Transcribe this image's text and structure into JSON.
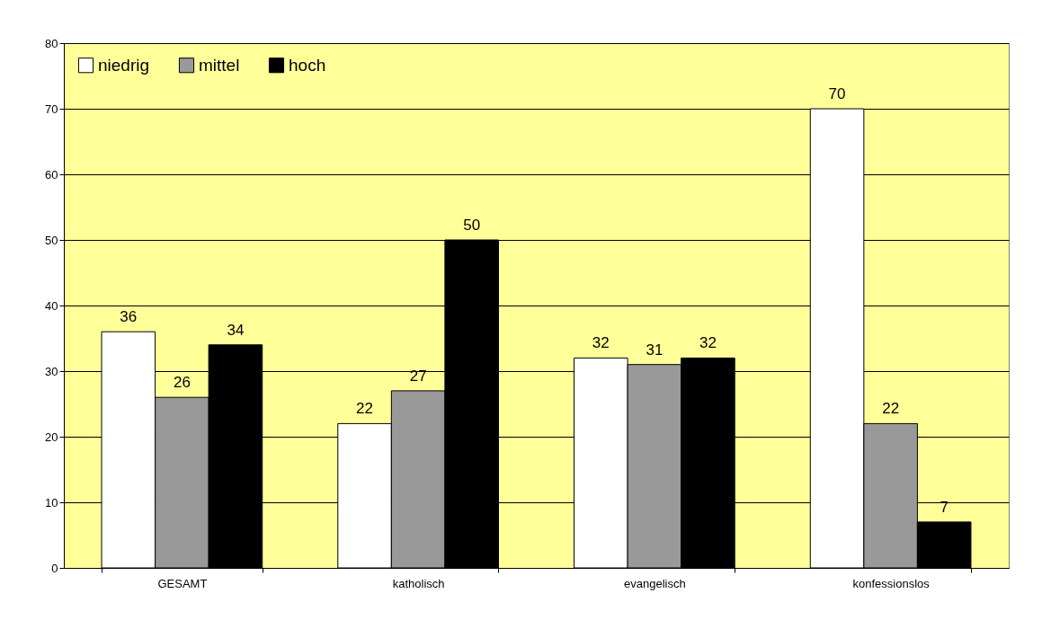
{
  "chart_data": {
    "type": "bar",
    "categories": [
      "GESAMT",
      "katholisch",
      "evangelisch",
      "konfessionslos"
    ],
    "series": [
      {
        "name": "niedrig",
        "color": "#ffffff",
        "values": [
          36,
          22,
          32,
          70
        ]
      },
      {
        "name": "mittel",
        "color": "#999999",
        "values": [
          26,
          27,
          31,
          22
        ]
      },
      {
        "name": "hoch",
        "color": "#000000",
        "values": [
          34,
          50,
          32,
          7
        ]
      }
    ],
    "ylim": [
      0,
      80
    ],
    "yticks": [
      0,
      10,
      20,
      30,
      40,
      50,
      60,
      70,
      80
    ],
    "grid": "y",
    "legend": "top left",
    "data_labels": true
  }
}
